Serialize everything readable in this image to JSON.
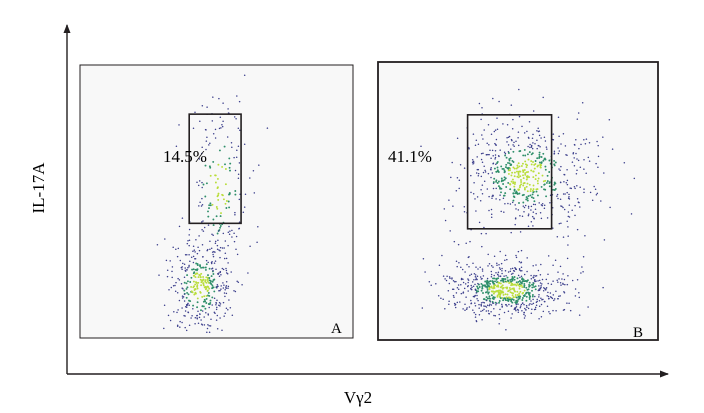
{
  "chart_data": {
    "type": "scatter",
    "subtype": "flow-cytometry-dot-plot",
    "xlabel": "Vγ2",
    "ylabel": "IL-17A",
    "axis_arrows": true,
    "tick_labels": false,
    "grid": false,
    "colors": {
      "dot": "#3c3f8c",
      "density_mid": "#2f8f6a",
      "density_high": "#b9dd3a",
      "axis": "#231f20",
      "panel_fill": "#f8f8f8"
    },
    "panels": [
      {
        "label": "A",
        "gate_percent": "14.5%",
        "gate": {
          "x": [
            0.4,
            0.59
          ],
          "y": [
            0.42,
            0.82
          ]
        },
        "populations": [
          {
            "name": "IL-17A+",
            "cx": 0.51,
            "cy": 0.55,
            "sx": 0.06,
            "sy": 0.17,
            "count": 190
          },
          {
            "name": "IL-17A-",
            "cx": 0.44,
            "cy": 0.19,
            "sx": 0.06,
            "sy": 0.09,
            "count": 380
          }
        ]
      },
      {
        "label": "B",
        "gate_percent": "41.1%",
        "gate": {
          "x": [
            0.32,
            0.62
          ],
          "y": [
            0.4,
            0.81
          ]
        },
        "populations": [
          {
            "name": "IL-17A+",
            "cx": 0.53,
            "cy": 0.59,
            "sx": 0.12,
            "sy": 0.1,
            "count": 620
          },
          {
            "name": "IL-17A-",
            "cx": 0.46,
            "cy": 0.18,
            "sx": 0.11,
            "sy": 0.05,
            "count": 700
          }
        ]
      }
    ]
  }
}
